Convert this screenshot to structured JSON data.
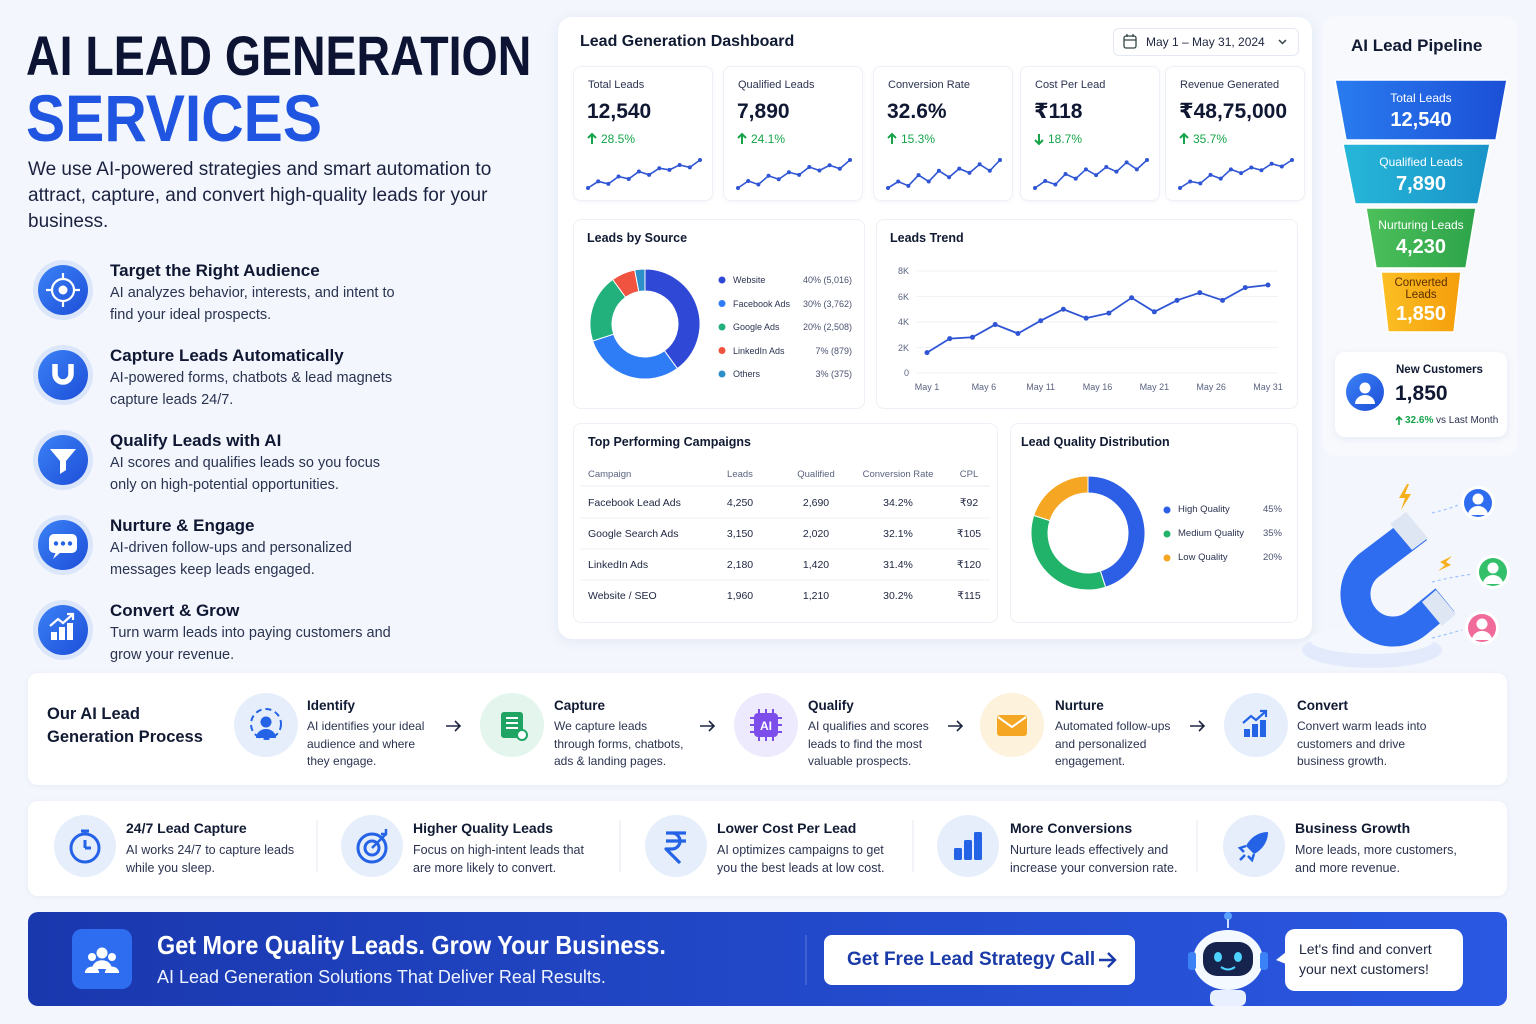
{
  "hero": {
    "title_line1": "AI LEAD GENERATION",
    "title_line2": "SERVICES",
    "description": "We use AI-powered strategies and smart automation to attract, capture, and convert high-quality leads for your business."
  },
  "features": [
    {
      "title": "Target the Right Audience",
      "text": "AI analyzes behavior, interests, and intent to find your ideal prospects."
    },
    {
      "title": "Capture Leads Automatically",
      "text": "AI-powered forms, chatbots & lead magnets capture leads 24/7."
    },
    {
      "title": "Qualify Leads with AI",
      "text": "AI scores and qualifies leads so you focus only on high-potential opportunities."
    },
    {
      "title": "Nurture & Engage",
      "text": "AI-driven follow-ups and personalized messages keep leads engaged."
    },
    {
      "title": "Convert & Grow",
      "text": "Turn warm leads into paying customers and grow your revenue."
    }
  ],
  "dashboard": {
    "title": "Lead Generation Dashboard",
    "date_range": "May 1 – May 31, 2024",
    "kpis": [
      {
        "label": "Total Leads",
        "value": "12,540",
        "change": "28.5%",
        "trend": "up",
        "sparkline": [
          22,
          30,
          27,
          36,
          33,
          42,
          38,
          46,
          44,
          50,
          47,
          56
        ]
      },
      {
        "label": "Qualified Leads",
        "value": "7,890",
        "change": "24.1%",
        "trend": "up",
        "sparkline": [
          20,
          28,
          24,
          34,
          30,
          38,
          35,
          44,
          40,
          46,
          42,
          52
        ]
      },
      {
        "label": "Conversion Rate",
        "value": "32.6%",
        "change": "15.3%",
        "trend": "up",
        "sparkline": [
          24,
          30,
          26,
          36,
          30,
          40,
          34,
          42,
          38,
          46,
          40,
          50
        ]
      },
      {
        "label": "Cost Per Lead",
        "value": "₹118",
        "change": "18.7%",
        "trend": "down",
        "sparkline": [
          22,
          28,
          25,
          34,
          30,
          38,
          33,
          40,
          36,
          44,
          38,
          46
        ]
      },
      {
        "label": "Revenue Generated",
        "value": "₹48,75,000",
        "change": "35.7%",
        "trend": "up",
        "sparkline": [
          20,
          27,
          25,
          34,
          30,
          40,
          36,
          42,
          39,
          46,
          43,
          50
        ]
      }
    ],
    "leads_by_source": {
      "type": "pie",
      "title": "Leads by Source",
      "categories": [
        "Website",
        "Facebook Ads",
        "Google Ads",
        "LinkedIn Ads",
        "Others"
      ],
      "values": [
        40,
        30,
        20,
        7,
        3
      ],
      "value_labels": [
        "40% (5,016)",
        "30% (3,762)",
        "20% (2,508)",
        "7% (879)",
        "3% (375)"
      ],
      "colors": [
        "#3048d6",
        "#2e7cf6",
        "#22b07d",
        "#f0533f",
        "#2d8fc8"
      ]
    },
    "leads_trend": {
      "type": "line",
      "title": "Leads Trend",
      "x": [
        1,
        3,
        5,
        7,
        9,
        11,
        13,
        15,
        17,
        19,
        21,
        23,
        25,
        27,
        29,
        31
      ],
      "values": [
        1600,
        2700,
        2800,
        3800,
        3100,
        4100,
        5000,
        4300,
        4700,
        5900,
        4800,
        5700,
        6300,
        5700,
        6700,
        6900
      ],
      "color": "#2f55d4",
      "xlim": [
        1,
        31
      ],
      "xticks": [
        {
          "value": 1,
          "label": "May 1"
        },
        {
          "value": 6,
          "label": "May 6"
        },
        {
          "value": 11,
          "label": "May 11"
        },
        {
          "value": 16,
          "label": "May 16"
        },
        {
          "value": 21,
          "label": "May 21"
        },
        {
          "value": 26,
          "label": "May 26"
        },
        {
          "value": 31,
          "label": "May 31"
        }
      ],
      "ylim": [
        0,
        8000
      ],
      "yticks": [
        0,
        {
          "value": 2000,
          "label": "2K"
        },
        {
          "value": 4000,
          "label": "4K"
        },
        {
          "value": 6000,
          "label": "6K"
        },
        {
          "value": 8000,
          "label": "8K"
        }
      ],
      "grid": true
    },
    "campaigns": {
      "title": "Top Performing Campaigns",
      "columns": [
        "Campaign",
        "Leads",
        "Qualified",
        "Conversion Rate",
        "CPL"
      ],
      "rows": [
        [
          "Facebook Lead Ads",
          "4,250",
          "2,690",
          "34.2%",
          "₹92"
        ],
        [
          "Google Search Ads",
          "3,150",
          "2,020",
          "32.1%",
          "₹105"
        ],
        [
          "LinkedIn Ads",
          "2,180",
          "1,420",
          "31.4%",
          "₹120"
        ],
        [
          "Website / SEO",
          "1,960",
          "1,210",
          "30.2%",
          "₹115"
        ]
      ]
    },
    "lead_quality": {
      "type": "pie",
      "title": "Lead Quality Distribution",
      "categories": [
        "High Quality",
        "Medium Quality",
        "Low Quality"
      ],
      "values": [
        45,
        35,
        20
      ],
      "value_labels": [
        "45%",
        "35%",
        "20%"
      ],
      "colors": [
        "#2d5fe6",
        "#22b36b",
        "#f5a623"
      ]
    }
  },
  "pipeline": {
    "title": "AI Lead Pipeline",
    "stages": [
      {
        "label": "Total Leads",
        "value": "12,540"
      },
      {
        "label": "Qualified Leads",
        "value": "7,890"
      },
      {
        "label": "Nurturing Leads",
        "value": "4,230"
      },
      {
        "label": "Converted Leads",
        "value": "1,850"
      }
    ],
    "new_customers": {
      "label": "New Customers",
      "value": "1,850",
      "change": "32.6%",
      "note": "vs Last Month"
    }
  },
  "process": {
    "title": "Our AI Lead Generation Process",
    "steps": [
      {
        "title": "Identify",
        "text": "AI identifies your ideal audience and where they engage."
      },
      {
        "title": "Capture",
        "text": "We capture leads through forms, chatbots, ads & landing pages."
      },
      {
        "title": "Qualify",
        "text": "AI qualifies and scores leads to find the most valuable prospects.",
        "icon_label": "AI"
      },
      {
        "title": "Nurture",
        "text": "Automated follow-ups and personalized engagement."
      },
      {
        "title": "Convert",
        "text": "Convert warm leads into customers and drive business growth."
      }
    ]
  },
  "benefits": [
    {
      "title": "24/7 Lead Capture",
      "text": "AI works 24/7 to capture leads while you sleep."
    },
    {
      "title": "Higher Quality Leads",
      "text": "Focus on high-intent leads that are more likely to convert."
    },
    {
      "title": "Lower Cost Per Lead",
      "text": "AI optimizes campaigns to get you the best leads at low cost."
    },
    {
      "title": "More Conversions",
      "text": "Nurture leads effectively and increase your conversion rate."
    },
    {
      "title": "Business Growth",
      "text": "More leads, more customers, and more revenue."
    }
  ],
  "cta": {
    "headline": "Get More Quality Leads. Grow Your Business.",
    "subline": "AI Lead Generation Solutions That Deliver Real Results.",
    "button": "Get Free Lead Strategy Call",
    "bubble": "Let's find and convert your next customers!"
  }
}
